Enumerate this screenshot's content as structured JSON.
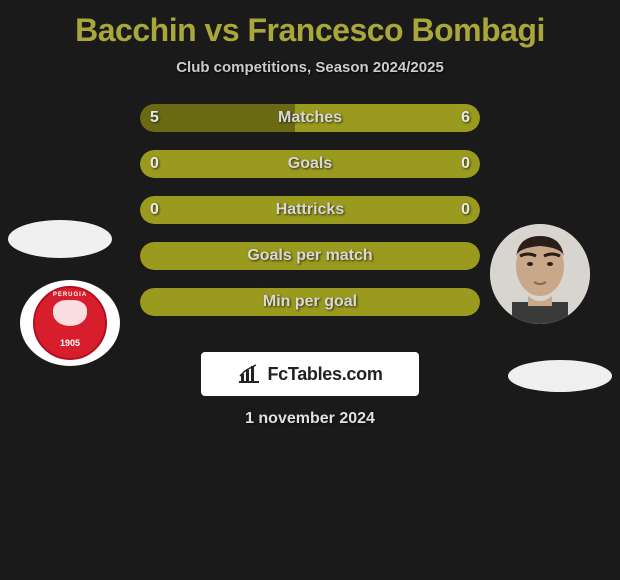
{
  "title": {
    "player1": "Bacchin",
    "vs": "vs",
    "player2": "Francesco Bombagi",
    "color": "#a9a63a"
  },
  "subtitle": "Club competitions, Season 2024/2025",
  "stats": {
    "bar_color": "#9a9a1e",
    "bar_bg": "#9a9a1e",
    "rows": [
      {
        "label": "Matches",
        "left": "5",
        "right": "6",
        "left_pct": 45.5,
        "right_pct": 54.5,
        "left_color": "#6a6a15",
        "right_color": "#9a9a1e"
      },
      {
        "label": "Goals",
        "left": "0",
        "right": "0",
        "left_pct": 50,
        "right_pct": 50,
        "left_color": "#9a9a1e",
        "right_color": "#9a9a1e"
      },
      {
        "label": "Hattricks",
        "left": "0",
        "right": "0",
        "left_pct": 50,
        "right_pct": 50,
        "left_color": "#9a9a1e",
        "right_color": "#9a9a1e"
      },
      {
        "label": "Goals per match",
        "left": "",
        "right": "",
        "left_pct": 100,
        "right_pct": 0,
        "left_color": "#9a9a1e",
        "right_color": "#9a9a1e"
      },
      {
        "label": "Min per goal",
        "left": "",
        "right": "",
        "left_pct": 100,
        "right_pct": 0,
        "left_color": "#9a9a1e",
        "right_color": "#9a9a1e"
      }
    ]
  },
  "club_left": {
    "name": "PERUGIA",
    "year": "1905",
    "badge_color": "#d81e2c"
  },
  "brand": {
    "text": "FcTables.com",
    "icon": "bar-chart-icon"
  },
  "date": "1 november 2024",
  "colors": {
    "background": "#1a1a1a",
    "text_light": "#e0e0e0",
    "text_muted": "#cccccc"
  }
}
